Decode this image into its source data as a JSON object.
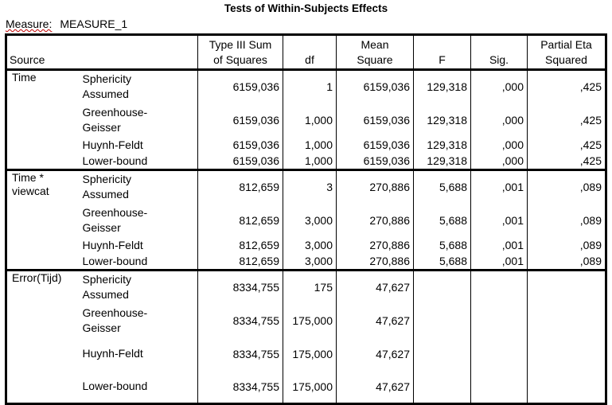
{
  "title": "Tests of Within-Subjects Effects",
  "measure": {
    "label": "Measure:",
    "value": "MEASURE_1"
  },
  "columns": {
    "source": "Source",
    "ss": [
      "Type III Sum",
      "of Squares"
    ],
    "df": "df",
    "ms": [
      "Mean",
      "Square"
    ],
    "f": "F",
    "sig": "Sig.",
    "eta": [
      "Partial Eta",
      "Squared"
    ]
  },
  "groups": [
    {
      "source": [
        "Time"
      ],
      "rows": [
        {
          "sub": [
            "Sphericity",
            "Assumed"
          ],
          "ss": "6159,036",
          "df": "1",
          "ms": "6159,036",
          "f": "129,318",
          "sig": ",000",
          "eta": ",425"
        },
        {
          "sub": [
            "Greenhouse-",
            "Geisser"
          ],
          "ss": "6159,036",
          "df": "1,000",
          "ms": "6159,036",
          "f": "129,318",
          "sig": ",000",
          "eta": ",425"
        },
        {
          "sub": [
            "Huynh-Feldt"
          ],
          "ss": "6159,036",
          "df": "1,000",
          "ms": "6159,036",
          "f": "129,318",
          "sig": ",000",
          "eta": ",425"
        },
        {
          "sub": [
            "Lower-bound"
          ],
          "ss": "6159,036",
          "df": "1,000",
          "ms": "6159,036",
          "f": "129,318",
          "sig": ",000",
          "eta": ",425"
        }
      ]
    },
    {
      "source": [
        "Time *",
        "viewcat"
      ],
      "rows": [
        {
          "sub": [
            "Sphericity",
            "Assumed"
          ],
          "ss": "812,659",
          "df": "3",
          "ms": "270,886",
          "f": "5,688",
          "sig": ",001",
          "eta": ",089"
        },
        {
          "sub": [
            "Greenhouse-",
            "Geisser"
          ],
          "ss": "812,659",
          "df": "3,000",
          "ms": "270,886",
          "f": "5,688",
          "sig": ",001",
          "eta": ",089"
        },
        {
          "sub": [
            "Huynh-Feldt"
          ],
          "ss": "812,659",
          "df": "3,000",
          "ms": "270,886",
          "f": "5,688",
          "sig": ",001",
          "eta": ",089"
        },
        {
          "sub": [
            "Lower-bound"
          ],
          "ss": "812,659",
          "df": "3,000",
          "ms": "270,886",
          "f": "5,688",
          "sig": ",001",
          "eta": ",089"
        }
      ]
    },
    {
      "source": [
        "Error(Tijd)"
      ],
      "rows": [
        {
          "sub": [
            "Sphericity",
            "Assumed"
          ],
          "ss": "8334,755",
          "df": "175",
          "ms": "47,627",
          "f": "",
          "sig": "",
          "eta": ""
        },
        {
          "sub": [
            "Greenhouse-",
            "Geisser"
          ],
          "ss": "8334,755",
          "df": "175,000",
          "ms": "47,627",
          "f": "",
          "sig": "",
          "eta": ""
        },
        {
          "sub": [
            "Huynh-Feldt"
          ],
          "ss": "8334,755",
          "df": "175,000",
          "ms": "47,627",
          "f": "",
          "sig": "",
          "eta": ""
        },
        {
          "sub": [
            "Lower-bound"
          ],
          "ss": "8334,755",
          "df": "175,000",
          "ms": "47,627",
          "f": "",
          "sig": "",
          "eta": ""
        }
      ]
    }
  ]
}
